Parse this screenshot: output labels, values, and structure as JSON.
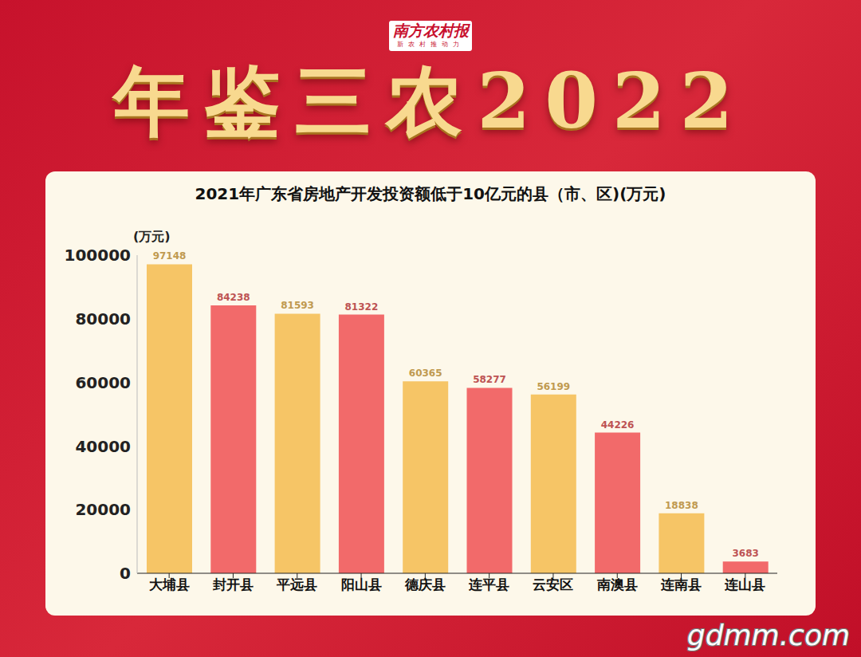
{
  "header": {
    "logo": "南方农村报",
    "slogan": "新农村推动力",
    "title": "年鉴三农2022"
  },
  "watermark": "gdmm.com",
  "chart_data": {
    "type": "bar",
    "title": "2021年广东省房地产开发投资额低于10亿元的县（市、区)(万元)",
    "y_label": "(万元)",
    "categories": [
      "大埔县",
      "封开县",
      "平远县",
      "阳山县",
      "德庆县",
      "连平县",
      "云安区",
      "南澳县",
      "连南县",
      "连山县"
    ],
    "values": [
      97148,
      84238,
      81593,
      81322,
      60365,
      58277,
      56199,
      44226,
      18838,
      3683
    ],
    "colors": [
      "#f6c566",
      "#f26a6a",
      "#f6c566",
      "#f26a6a",
      "#f6c566",
      "#f26a6a",
      "#f6c566",
      "#f26a6a",
      "#f6c566",
      "#f26a6a"
    ],
    "ylim": [
      0,
      100000
    ],
    "yticks": [
      0,
      20000,
      40000,
      60000,
      80000,
      100000
    ],
    "grid": false,
    "data_labels": true
  }
}
